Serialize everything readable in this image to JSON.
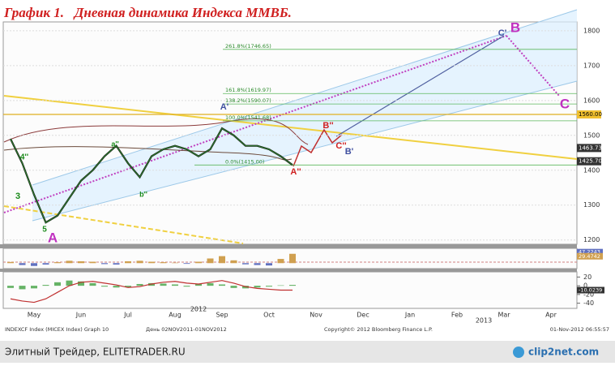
{
  "chart_data": [
    {
      "type": "line",
      "title": "График 1.   Дневная динамика Индекса ММВБ.",
      "categories": [
        null,
        null,
        "May",
        null,
        null,
        null,
        "Jun",
        null,
        null,
        null,
        "Jul",
        null,
        null,
        null,
        "Aug",
        null,
        null,
        null,
        "Sep",
        null,
        null,
        null,
        "Oct",
        null,
        null,
        null,
        "Nov",
        null,
        null,
        null,
        "Dec",
        null,
        null,
        null,
        "Jan",
        null,
        null,
        null,
        "Feb",
        null,
        null,
        null,
        "Mar",
        null,
        null,
        null,
        "Apr"
      ],
      "values": [
        1490,
        1420,
        1330,
        1250,
        1270,
        1320,
        1370,
        1400,
        1440,
        1470,
        1420,
        1380,
        1440,
        1460,
        1470,
        1460,
        1440,
        1460,
        1520,
        1500,
        1470,
        1470,
        1460,
        1440,
        1415,
        null,
        null,
        null,
        null,
        null,
        null,
        null,
        null,
        null,
        null,
        null,
        null,
        null,
        null,
        null,
        null,
        null,
        null,
        null,
        null,
        null,
        null
      ],
      "color": "#2d7a2d",
      "ylim": [
        1190,
        1823
      ],
      "yticks": [
        1200,
        1300,
        1400,
        1500,
        1600,
        1700,
        1800
      ],
      "grid": true,
      "year_labels": [
        "2012",
        "2013"
      ],
      "price_labels": [
        {
          "value": 1560,
          "label": "1560.00"
        },
        {
          "value": 1463.73,
          "label": "1463.73"
        },
        {
          "value": 1425.7,
          "label": "1425.70"
        }
      ],
      "fib_levels": [
        {
          "value": 1746.65,
          "label": "261.8%(1746.65)"
        },
        {
          "value": 1619.97,
          "label": "161.8%(1619.97)"
        },
        {
          "value": 1590.07,
          "label": "138.2%(1590.07)"
        },
        {
          "value": 1541.68,
          "label": "100.0%(1541.68)"
        },
        {
          "value": 1415,
          "label": "0.0%(1415.00)"
        }
      ],
      "waves": [
        "A",
        "A'",
        "A''",
        "B",
        "B'",
        "B''",
        "C",
        "C'",
        "C''",
        "3",
        "4''",
        "5",
        "a''",
        "b''"
      ]
    },
    {
      "type": "bar",
      "values": [
        5,
        -8,
        -12,
        -6,
        4,
        10,
        8,
        6,
        -4,
        -6,
        8,
        10,
        6,
        4,
        2,
        -3,
        6,
        20,
        30,
        12,
        -5,
        -8,
        -10,
        18,
        40
      ],
      "color": "#d0a050",
      "negative_color": "#6070c0",
      "ylim": [
        -20,
        60
      ],
      "last_labels": [
        {
          "value": 47.2243,
          "label": "47.2243"
        },
        {
          "value": 29.4742,
          "label": "29.4742"
        }
      ]
    },
    {
      "type": "line",
      "values": [
        -30,
        -35,
        -38,
        -30,
        -15,
        0,
        8,
        10,
        6,
        2,
        -4,
        -2,
        4,
        8,
        10,
        6,
        4,
        8,
        12,
        6,
        -2,
        -6,
        -8,
        -10,
        -10.0239
      ],
      "histogram": [
        -5,
        -8,
        -6,
        2,
        8,
        12,
        10,
        6,
        -2,
        -4,
        -3,
        4,
        6,
        5,
        3,
        -2,
        4,
        6,
        3,
        -5,
        -6,
        -4,
        -2,
        1,
        2
      ],
      "color": "#c03030",
      "histogram_color": "#40a040",
      "ylim": [
        -50,
        30
      ],
      "yticks": [
        20,
        0,
        -20,
        -40
      ],
      "last_label": {
        "value": -10.0239,
        "label": "-10.0239"
      }
    }
  ],
  "footer": [
    "INDEXCF Index (MICEX Index) Graph 10",
    "День 02NOV2011-01NOV2012",
    "Copyright© 2012 Bloomberg Finance L.P.",
    "01-Nov-2012 06:55:57"
  ],
  "watermark": {
    "left": "Элитный Трейдер, ELITETRADER.RU",
    "right": "clip2net.com"
  }
}
